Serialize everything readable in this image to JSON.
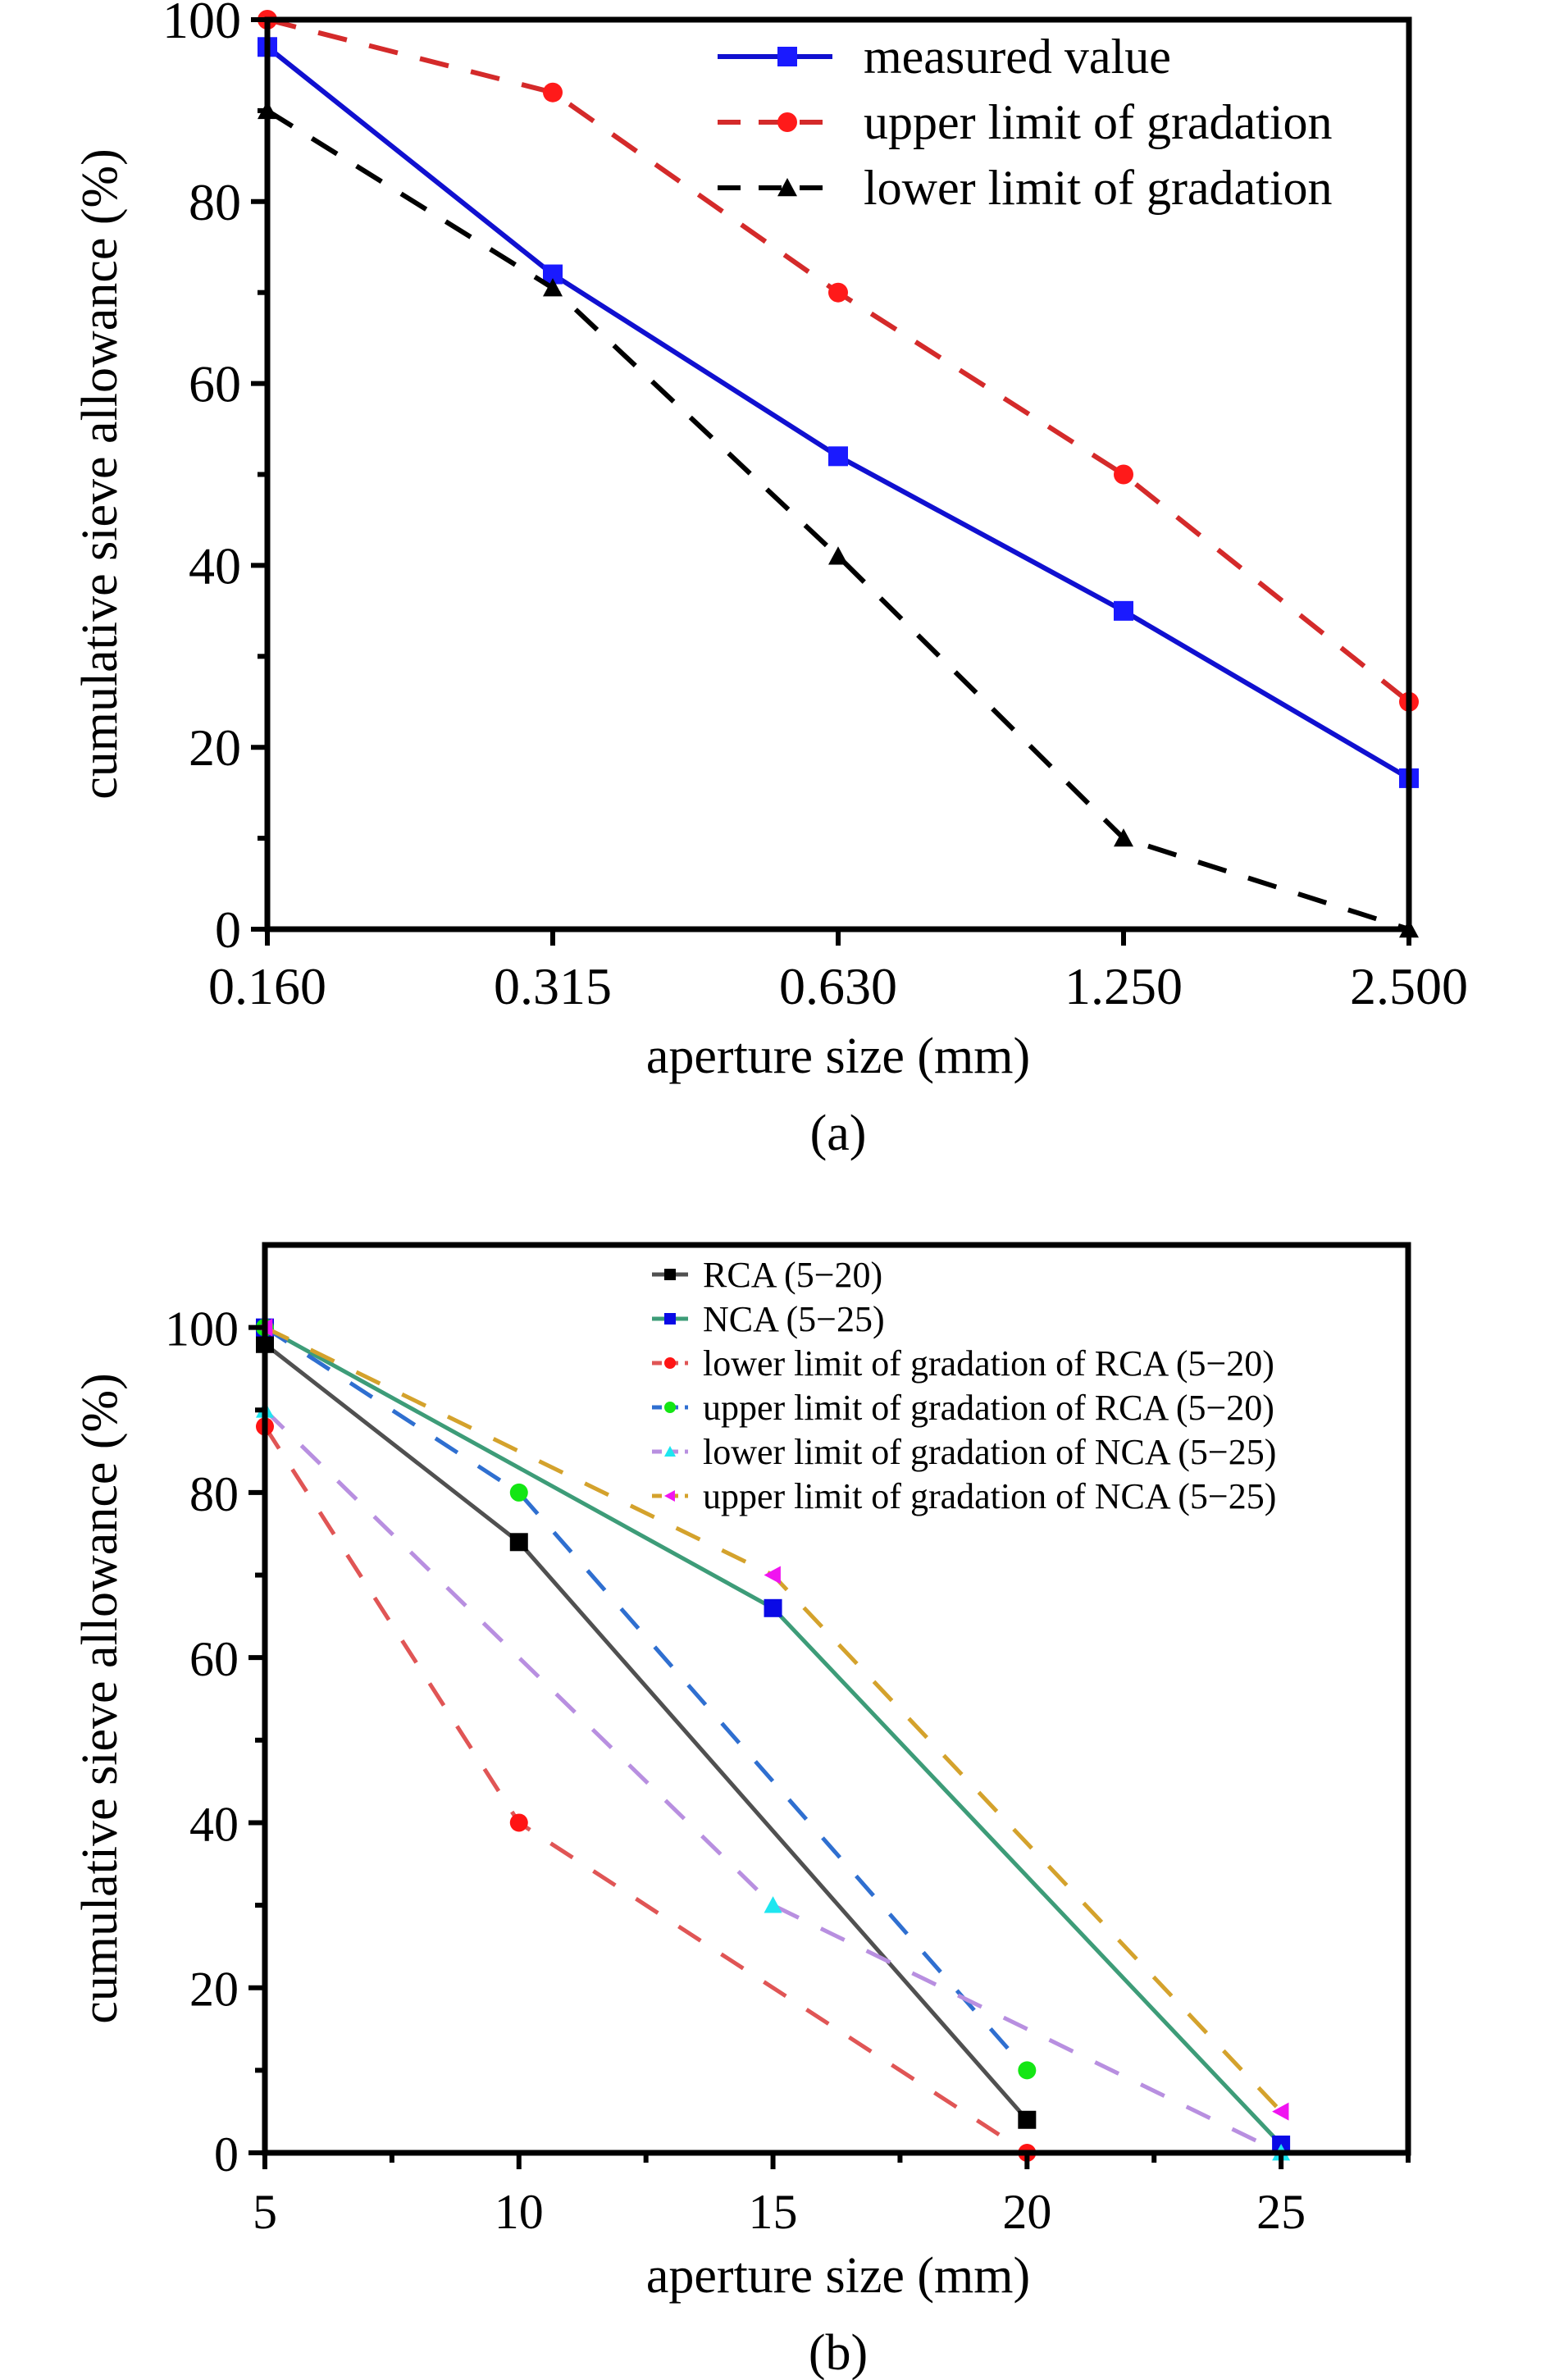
{
  "figure": {
    "panels": [
      "a",
      "b"
    ]
  },
  "chart_data": [
    {
      "panel": "a",
      "caption": "(a)",
      "type": "line",
      "title": "",
      "xlabel": "aperture size (mm)",
      "ylabel": "cumulative sieve allowance (%)",
      "x_scale": "categorical",
      "categories": [
        "0.160",
        "0.315",
        "0.630",
        "1.250",
        "2.500"
      ],
      "ylim": [
        0,
        100
      ],
      "yticks": [
        0,
        20,
        40,
        60,
        80,
        100
      ],
      "y_minor_step": 10,
      "grid": false,
      "legend_position": "top-right",
      "series": [
        {
          "name": "measured value",
          "color": "#1010d0",
          "line_style": "solid",
          "marker": "square",
          "marker_color": "#1a1aff",
          "values": [
            97,
            72,
            52,
            35,
            16.6
          ]
        },
        {
          "name": "upper limit of gradation",
          "color": "#d42a2a",
          "line_style": "dashed",
          "marker": "circle",
          "marker_color": "#ff1a1a",
          "values": [
            100,
            92,
            70,
            50,
            25
          ]
        },
        {
          "name": "lower limit of gradation",
          "color": "#000000",
          "line_style": "dashed",
          "marker": "triangle-up",
          "marker_color": "#000000",
          "values": [
            90,
            70.5,
            41,
            10,
            0
          ]
        }
      ]
    },
    {
      "panel": "b",
      "caption": "(b)",
      "type": "line",
      "title": "",
      "xlabel": "aperture size (mm)",
      "ylabel": "cumulative sieve allowance (%)",
      "x_scale": "linear",
      "xlim": [
        5,
        27.5
      ],
      "xticks": [
        5,
        10,
        15,
        20,
        25
      ],
      "x_minor_step": 2.5,
      "ylim": [
        0,
        110
      ],
      "yticks": [
        0,
        20,
        40,
        60,
        80,
        100
      ],
      "y_minor_step": 10,
      "grid": false,
      "legend_position": "top-right",
      "series": [
        {
          "name": "RCA (5−20)",
          "color": "#505050",
          "line_style": "solid",
          "marker": "square",
          "marker_color": "#000000",
          "x": [
            5,
            10,
            20
          ],
          "values": [
            98,
            74,
            4
          ]
        },
        {
          "name": "NCA (5−25)",
          "color": "#3d9c78",
          "line_style": "solid",
          "marker": "square",
          "marker_color": "#0a0ae6",
          "x": [
            5,
            15,
            25
          ],
          "values": [
            100,
            66,
            1
          ]
        },
        {
          "name": "lower limit of gradation of RCA (5−20)",
          "color": "#e05555",
          "line_style": "dashed",
          "marker": "circle",
          "marker_color": "#ff1414",
          "x": [
            5,
            10,
            20
          ],
          "values": [
            88,
            40,
            0
          ]
        },
        {
          "name": "upper limit of gradation of RCA (5−20)",
          "color": "#2f6fd0",
          "line_style": "dashed",
          "marker": "circle",
          "marker_color": "#14e614",
          "x": [
            5,
            10,
            20
          ],
          "values": [
            100,
            80,
            10
          ]
        },
        {
          "name": "lower limit of gradation of NCA (5−25)",
          "color": "#b88fe0",
          "line_style": "dashed",
          "marker": "triangle-up",
          "marker_color": "#1ee6f0",
          "x": [
            5,
            15,
            25
          ],
          "values": [
            90,
            30,
            0
          ]
        },
        {
          "name": "upper limit of gradation of NCA (5−25)",
          "color": "#d4a22c",
          "line_style": "dashed",
          "marker": "triangle-left",
          "marker_color": "#f014f0",
          "x": [
            5,
            15,
            25
          ],
          "values": [
            100,
            70,
            5
          ]
        }
      ]
    }
  ]
}
